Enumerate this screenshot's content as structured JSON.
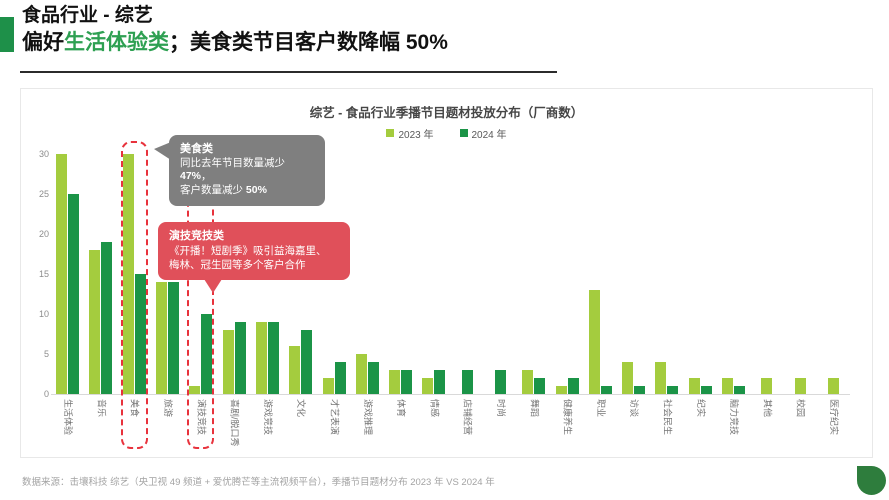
{
  "header": {
    "title_line1": "食品行业 - 综艺",
    "subtitle_prefix": "偏好",
    "subtitle_highlight": "生活体验类",
    "subtitle_rest": "；美食类节目客户数降幅 50%"
  },
  "chart_data": {
    "type": "bar",
    "title": "综艺 - 食品行业季播节目题材投放分布（厂商数）",
    "categories": [
      "生活体验",
      "音乐",
      "美食",
      "旅游",
      "演技竞技",
      "喜剧/脱口秀",
      "游戏竞技",
      "文化",
      "才艺表演",
      "游戏推理",
      "体育",
      "情感",
      "店铺经营",
      "时尚",
      "舞蹈",
      "健康养生",
      "职业",
      "访谈",
      "社会民生",
      "纪实",
      "脑力竞技",
      "其他",
      "校园",
      "医疗纪实"
    ],
    "series": [
      {
        "name": "2023 年",
        "color": "#A4CC3E",
        "values": [
          30,
          18,
          30,
          14,
          1,
          8,
          9,
          6,
          2,
          5,
          3,
          2,
          0,
          0,
          3,
          1,
          13,
          4,
          4,
          2,
          2,
          2,
          2,
          2
        ]
      },
      {
        "name": "2024 年",
        "color": "#1B9447",
        "values": [
          25,
          19,
          15,
          14,
          10,
          9,
          9,
          8,
          4,
          4,
          3,
          3,
          3,
          3,
          2,
          2,
          1,
          1,
          1,
          1,
          1,
          0,
          0,
          0
        ]
      }
    ],
    "ylim": [
      0,
      30
    ],
    "yticks": [
      0,
      5,
      10,
      15,
      20,
      25,
      30
    ],
    "grid": false,
    "legend_position": "top-center",
    "highlight_indexes": [
      2,
      4
    ],
    "highlight_color": "#E8323C"
  },
  "annotations": {
    "food": {
      "title": "美食类",
      "line1": "同比去年节目数量减少",
      "line2_bold": "47%",
      "line2_rest": "，",
      "line3_pre": "客户数量减少 ",
      "line3_bold": "50%",
      "color": "#7F7F7F"
    },
    "acting": {
      "title": "演技竞技类",
      "line1": "《开播！短剧季》吸引益海嘉里、",
      "line2": "梅林、冠生园等多个客户合作",
      "color": "#E0505A"
    }
  },
  "footer": {
    "source": "数据来源：击壤科技 综艺（央卫视 49 频道 + 爱优腾芒等主流视频平台），季播节目题材分布 2023 年  VS 2024 年"
  },
  "decorations": {
    "accent_color": "#1E9049",
    "leaf_color": "#2E7D3D"
  }
}
